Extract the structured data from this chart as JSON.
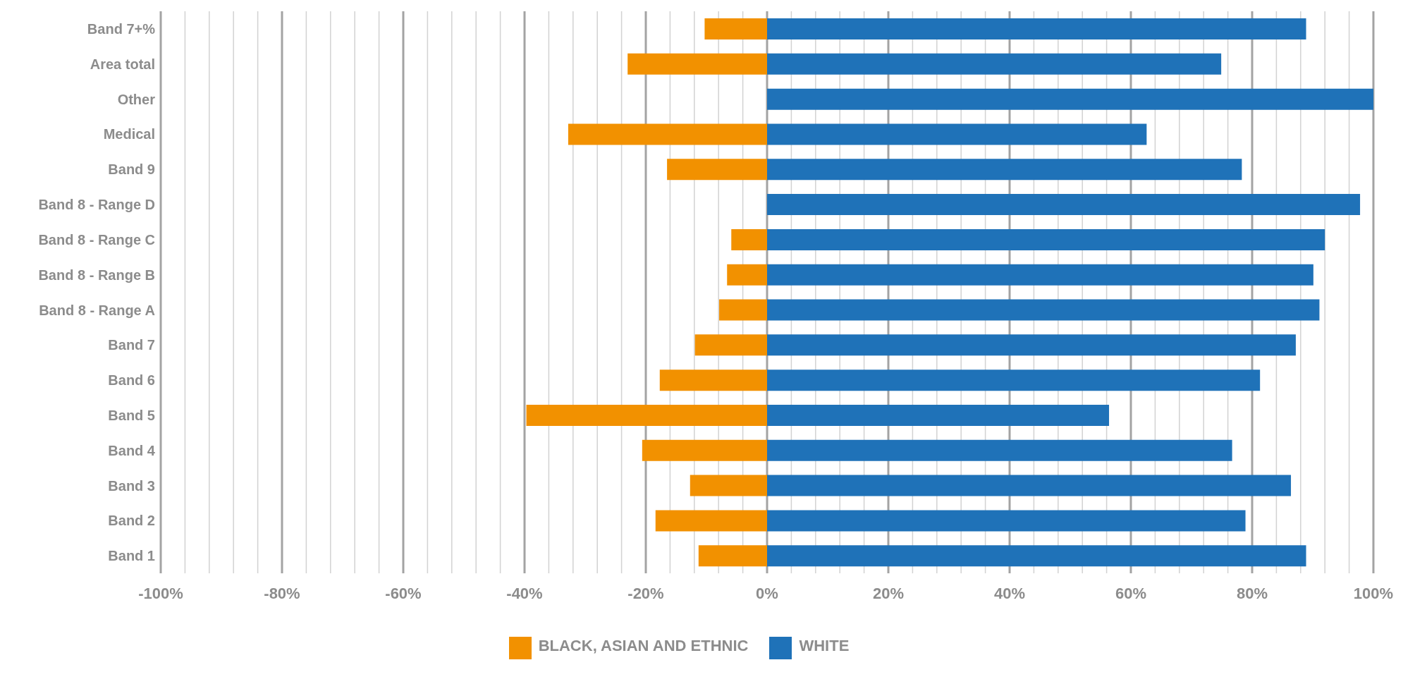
{
  "chart_data": {
    "type": "bar",
    "orientation": "horizontal",
    "stacked": true,
    "categories": [
      "Band 7+%",
      "Area total",
      "Other",
      "Medical",
      "Band 9",
      "Band 8 - Range D",
      "Band 8 - Range C",
      "Band 8 - Range B",
      "Band 8 - Range A",
      "Band 7",
      "Band 6",
      "Band 5",
      "Band 4",
      "Band 3",
      "Band 2",
      "Band 1"
    ],
    "series": [
      {
        "name": "WHITE",
        "color": "#1f72b8",
        "values": [
          88.9,
          74.9,
          100,
          62.6,
          78.3,
          97.8,
          92.0,
          90.1,
          91.1,
          87.2,
          81.3,
          56.4,
          76.7,
          86.4,
          78.9,
          88.9
        ]
      },
      {
        "name": "BLACK, ASIAN AND ETHNIC",
        "color": "#f29100",
        "values": [
          -10.3,
          -23.0,
          null,
          -32.8,
          -16.5,
          null,
          -5.9,
          -6.6,
          -7.9,
          -11.9,
          -17.7,
          -39.7,
          -20.6,
          -12.7,
          -18.4,
          -11.3
        ]
      }
    ],
    "xlim": [
      -100,
      100
    ],
    "xticks": [
      {
        "value": -100,
        "label": "-100%"
      },
      {
        "value": -96,
        "label": null
      },
      {
        "value": -92,
        "label": null
      },
      {
        "value": -88,
        "label": null
      },
      {
        "value": -84,
        "label": null
      },
      {
        "value": -80,
        "label": "-80%"
      },
      {
        "value": -76,
        "label": null
      },
      {
        "value": -72,
        "label": null
      },
      {
        "value": -68,
        "label": null
      },
      {
        "value": -64,
        "label": null
      },
      {
        "value": -60,
        "label": "-60%"
      },
      {
        "value": -56,
        "label": null
      },
      {
        "value": -52,
        "label": null
      },
      {
        "value": -48,
        "label": null
      },
      {
        "value": -44,
        "label": null
      },
      {
        "value": -40,
        "label": "-40%"
      },
      {
        "value": -36,
        "label": null
      },
      {
        "value": -32,
        "label": null
      },
      {
        "value": -28,
        "label": null
      },
      {
        "value": -24,
        "label": null
      },
      {
        "value": -20,
        "label": "-20%"
      },
      {
        "value": -16,
        "label": null
      },
      {
        "value": -12,
        "label": null
      },
      {
        "value": -8,
        "label": null
      },
      {
        "value": -4,
        "label": null
      },
      {
        "value": 0,
        "label": "0%"
      },
      {
        "value": 4,
        "label": null
      },
      {
        "value": 8,
        "label": null
      },
      {
        "value": 12,
        "label": null
      },
      {
        "value": 16,
        "label": null
      },
      {
        "value": 20,
        "label": "20%"
      },
      {
        "value": 24,
        "label": null
      },
      {
        "value": 28,
        "label": null
      },
      {
        "value": 32,
        "label": null
      },
      {
        "value": 36,
        "label": null
      },
      {
        "value": 40,
        "label": "40%"
      },
      {
        "value": 44,
        "label": null
      },
      {
        "value": 48,
        "label": null
      },
      {
        "value": 52,
        "label": null
      },
      {
        "value": 56,
        "label": null
      },
      {
        "value": 60,
        "label": "60%"
      },
      {
        "value": 64,
        "label": null
      },
      {
        "value": 68,
        "label": null
      },
      {
        "value": 72,
        "label": null
      },
      {
        "value": 76,
        "label": null
      },
      {
        "value": 80,
        "label": "80%"
      },
      {
        "value": 84,
        "label": null
      },
      {
        "value": 88,
        "label": null
      },
      {
        "value": 92,
        "label": null
      },
      {
        "value": 96,
        "label": null
      },
      {
        "value": 100,
        "label": "100%"
      }
    ],
    "grid": "x",
    "legend": "bottom"
  }
}
